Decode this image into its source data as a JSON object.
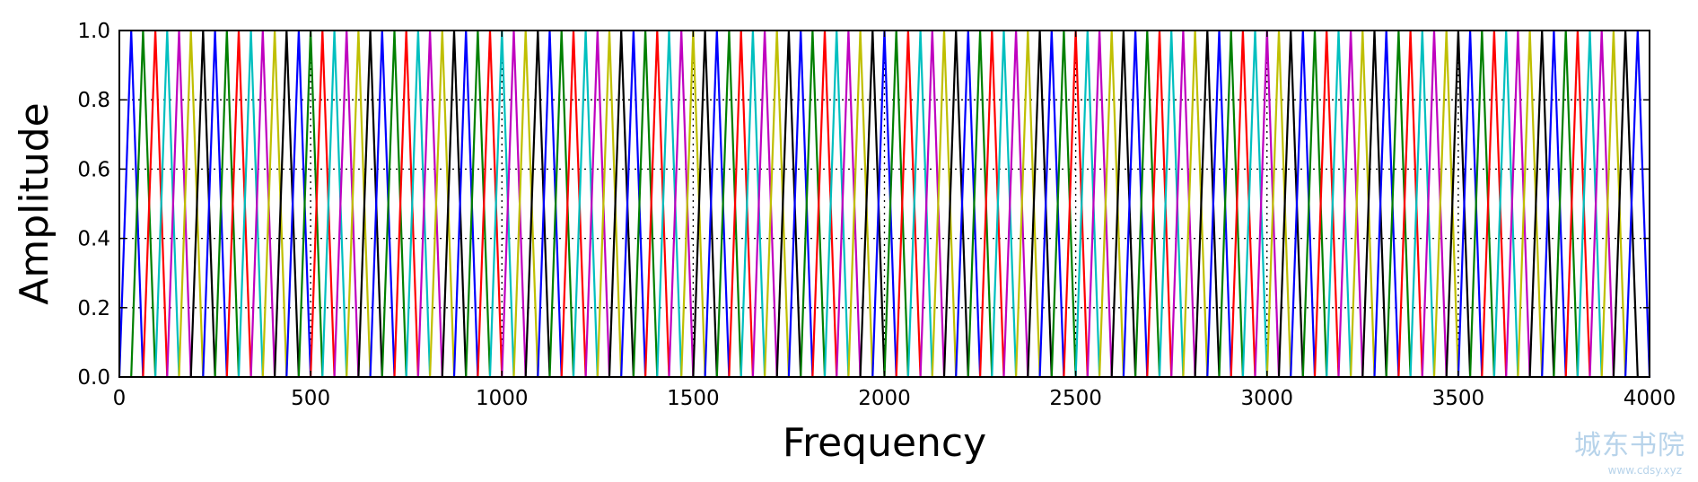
{
  "chart_data": {
    "type": "line",
    "title": "",
    "xlabel": "Frequency",
    "ylabel": "Amplitude",
    "xlim": [
      0,
      4000
    ],
    "ylim": [
      0.0,
      1.0
    ],
    "grid": true,
    "x_ticks": [
      0,
      500,
      1000,
      1500,
      2000,
      2500,
      3000,
      3500,
      4000
    ],
    "x_tick_labels": [
      "0",
      "500",
      "1000",
      "1500",
      "2000",
      "2500",
      "3000",
      "3500",
      "4000"
    ],
    "y_ticks": [
      0.0,
      0.2,
      0.4,
      0.6,
      0.8,
      1.0
    ],
    "y_tick_labels": [
      "0.0",
      "0.2",
      "0.4",
      "0.6",
      "0.8",
      "1.0"
    ],
    "filter_points_hz": [
      0,
      31,
      62,
      94,
      125,
      156,
      187,
      219,
      250,
      281,
      312,
      344,
      375,
      406,
      437,
      469,
      500,
      531,
      562,
      594,
      625,
      656,
      687,
      719,
      750,
      781,
      812,
      844,
      875,
      906,
      937,
      969,
      1000,
      1031,
      1062,
      1094,
      1125,
      1156,
      1187,
      1219,
      1250,
      1281,
      1312,
      1344,
      1375,
      1406,
      1437,
      1469,
      1500,
      1531,
      1562,
      1594,
      1625,
      1656,
      1687,
      1719,
      1750,
      1781,
      1812,
      1844,
      1875,
      1906,
      1937,
      1969,
      2000,
      2031,
      2062,
      2094,
      2125,
      2156,
      2187,
      2219,
      2250,
      2281,
      2312,
      2344,
      2375,
      2406,
      2437,
      2469,
      2500,
      2531,
      2562,
      2594,
      2625,
      2656,
      2687,
      2719,
      2750,
      2781,
      2812,
      2844,
      2875,
      2906,
      2937,
      2969,
      3000,
      3031,
      3062,
      3094,
      3125,
      3156,
      3187,
      3219,
      3250,
      3281,
      3312,
      3344,
      3375,
      3406,
      3437,
      3469,
      3500,
      3531,
      3562,
      3594,
      3625,
      3656,
      3687,
      3719,
      3750,
      3781,
      3812,
      3844,
      3875,
      3906,
      3937,
      3969,
      4000
    ],
    "series_colors": [
      "#0000ff",
      "#008000",
      "#ff0000",
      "#00bfbf",
      "#bf00bf",
      "#bfbf00",
      "#000000"
    ]
  },
  "watermark": {
    "main": "城东书院",
    "sub": "www.cdsy.xyz"
  }
}
